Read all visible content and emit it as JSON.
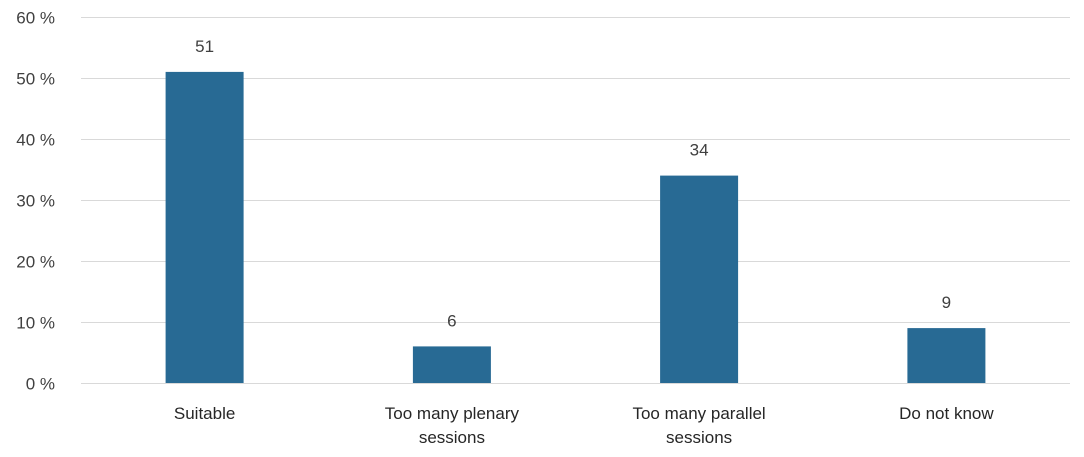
{
  "chart_data": {
    "type": "bar",
    "categories": [
      [
        "Suitable"
      ],
      [
        "Too many plenary",
        "sessions"
      ],
      [
        "Too many parallel",
        "sessions"
      ],
      [
        "Do not know"
      ]
    ],
    "values": [
      51,
      6,
      34,
      9
    ],
    "data_labels": [
      "51",
      "6",
      "34",
      "9"
    ],
    "ylim": [
      0,
      60
    ],
    "yticks": [
      0,
      10,
      20,
      30,
      40,
      50,
      60
    ],
    "ytick_suffix": " %",
    "title": "",
    "xlabel": "",
    "ylabel": "",
    "grid": true,
    "legend": "none",
    "bar_color": "#286a94"
  }
}
